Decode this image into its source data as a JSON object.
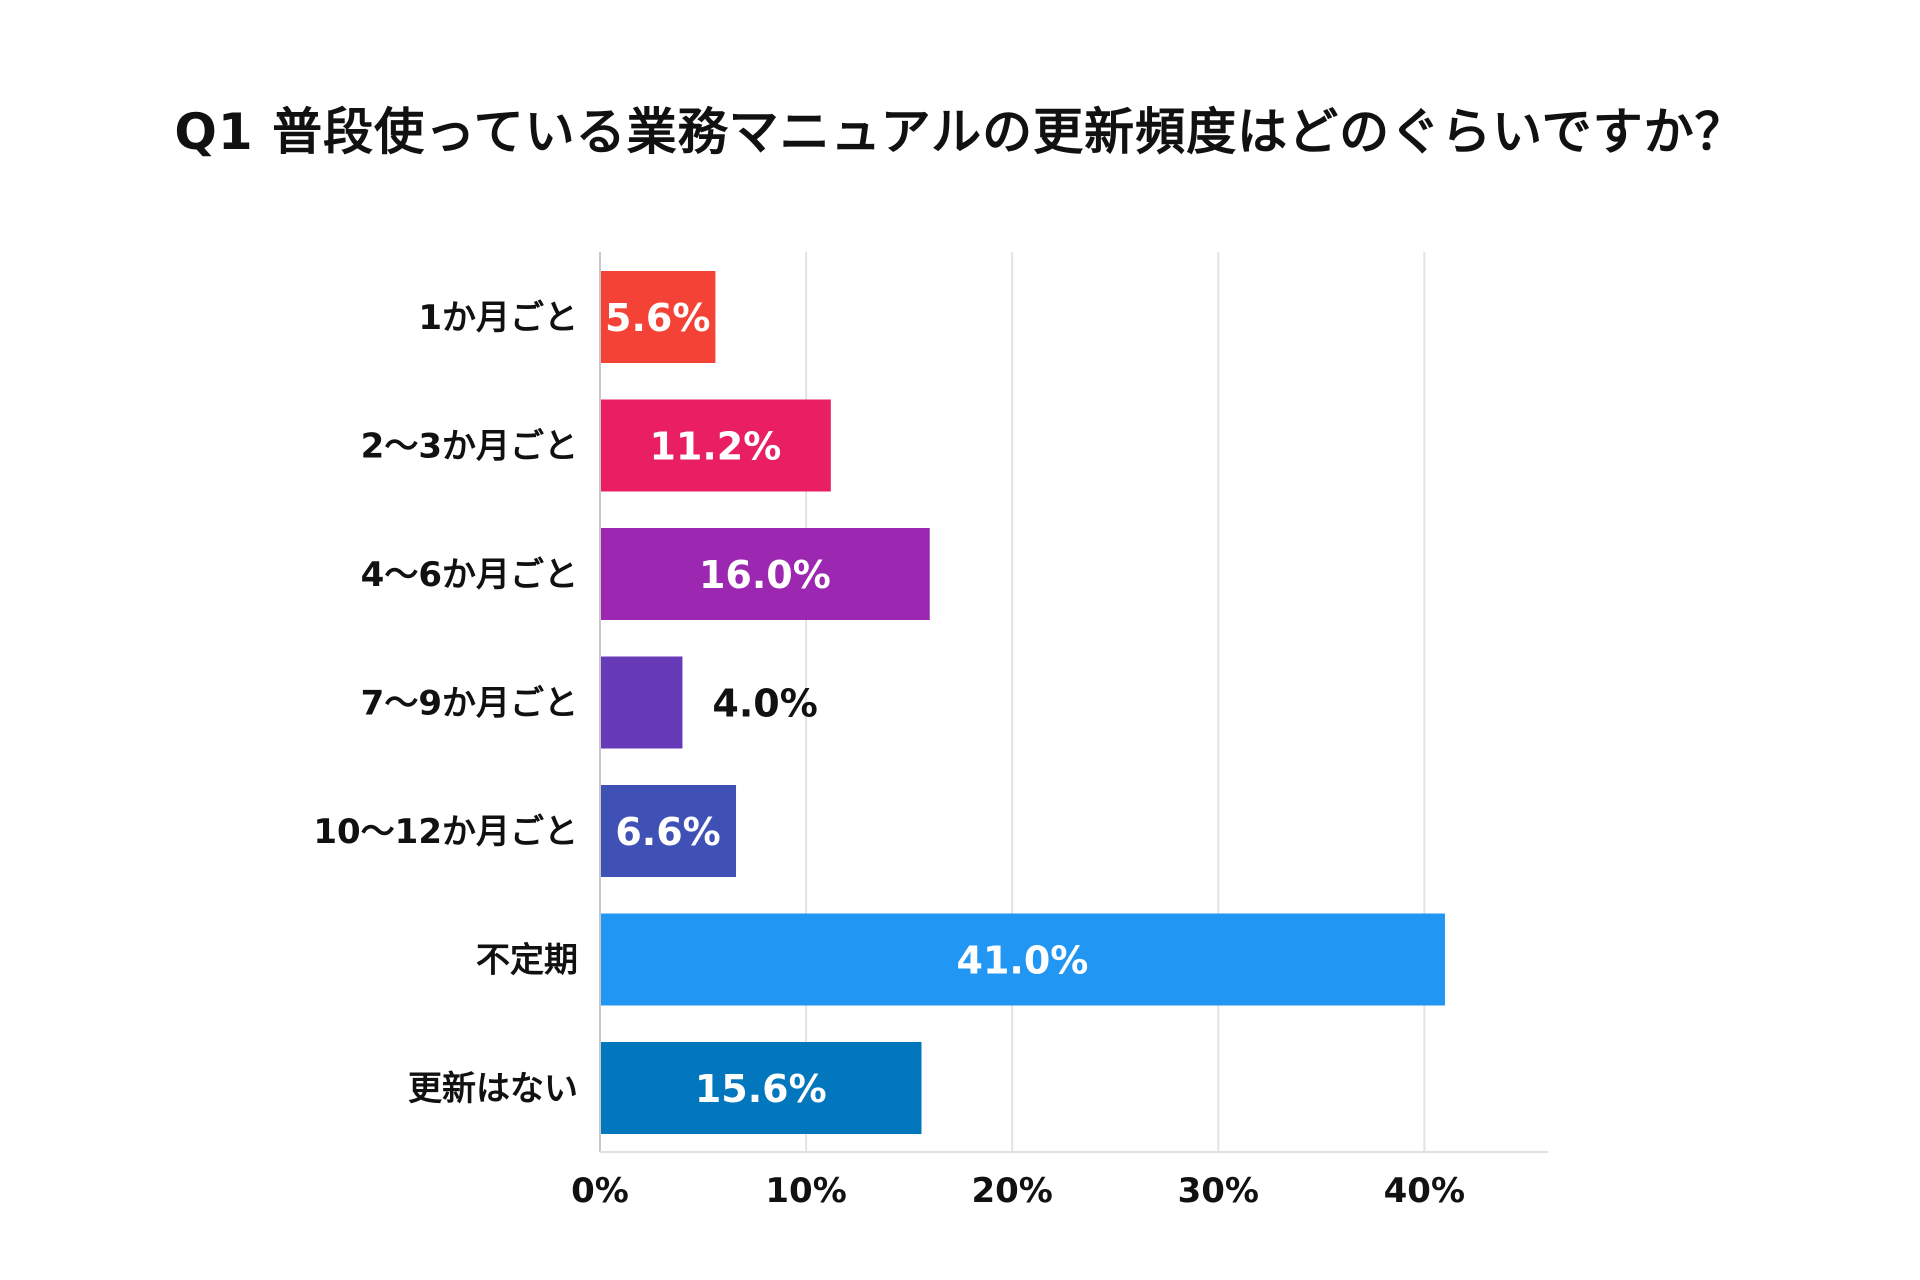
{
  "chart_data": {
    "type": "bar",
    "orientation": "horizontal",
    "title": "Q1 普段使っている業務マニュアルの更新頻度はどのぐらいですか？",
    "categories": [
      "1か月ごと",
      "2〜3か月ごと",
      "4〜6か月ごと",
      "7〜9か月ごと",
      "10〜12か月ごと",
      "不定期",
      "更新はない"
    ],
    "values": [
      5.6,
      11.2,
      16.0,
      4.0,
      6.6,
      41.0,
      15.6
    ],
    "value_labels": [
      "5.6%",
      "11.2%",
      "16.0%",
      "4.0%",
      "6.6%",
      "41.0%",
      "15.6%"
    ],
    "colors": [
      "#f44336",
      "#e91e63",
      "#9c27b0",
      "#673ab7",
      "#3f51b5",
      "#2196f3",
      "#0277bd"
    ],
    "xlim": [
      0,
      46
    ],
    "xticks": [
      0,
      10,
      20,
      30,
      40
    ],
    "xtick_labels": [
      "0%",
      "10%",
      "20%",
      "30%",
      "40%"
    ],
    "grid": true,
    "legend": "none"
  }
}
